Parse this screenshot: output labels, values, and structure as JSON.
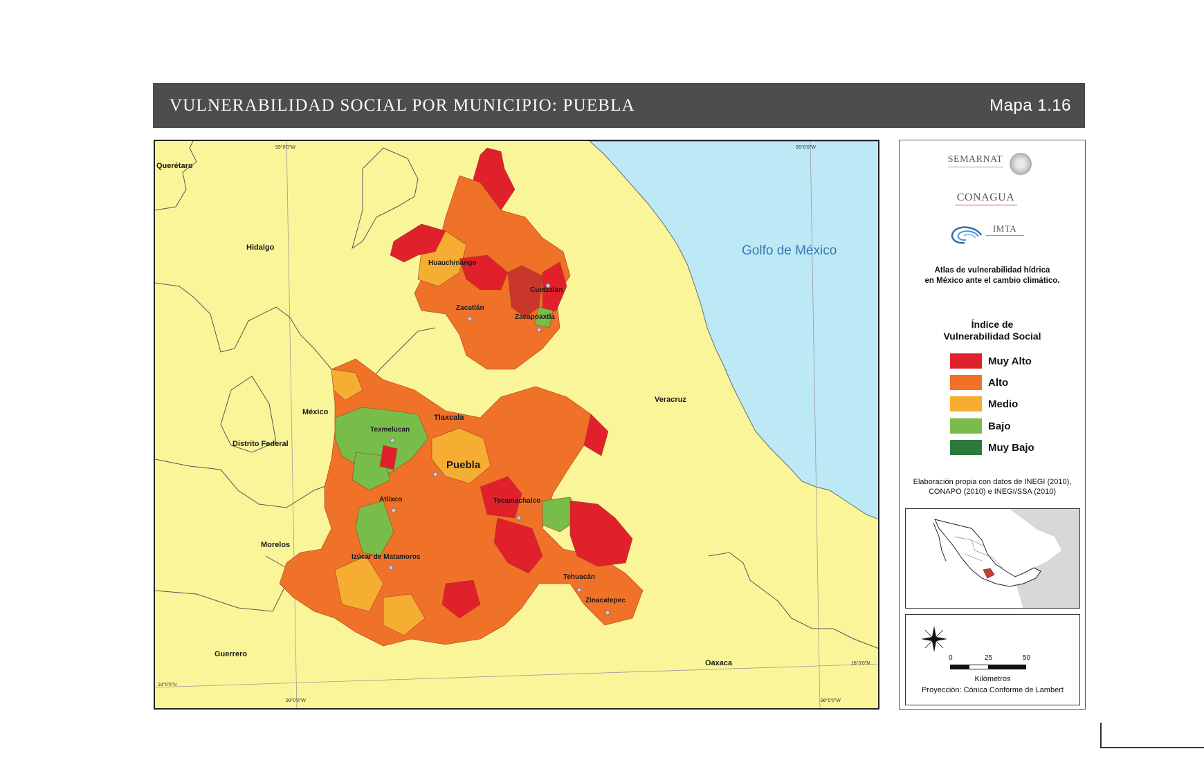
{
  "header": {
    "title": "VULNERABILIDAD SOCIAL POR MUNICIPIO: PUEBLA",
    "map_number": "Mapa 1.16"
  },
  "map": {
    "sea_label": "Golfo de México",
    "coords": {
      "top_left": "99°0'0\"W",
      "top_right": "96°0'0\"W",
      "bottom_left": "99°0'0\"W",
      "bottom_right": "96°0'0\"W",
      "left": "18°0'0\"N",
      "right": "18°0'0\"N"
    },
    "states": [
      "Querétaro",
      "Hidalgo",
      "México",
      "Distrito Federal",
      "Tlaxcala",
      "Veracruz",
      "Morelos",
      "Guerrero",
      "Oaxaca"
    ],
    "cities": [
      "Huauchinango",
      "Cuetzalan",
      "Zacatlán",
      "Zacapoaxtla",
      "Texmelucan",
      "Puebla",
      "Atlixco",
      "Tecamachalco",
      "Izúcar de Matamoros",
      "Tehuacán",
      "Zinacatepec"
    ],
    "colors": {
      "land": "#fbf59a",
      "sea": "#bde8f6",
      "muy_alto": "#e0202a",
      "alto": "#ef7228",
      "medio": "#f5ae32",
      "bajo": "#78bc4a",
      "muy_bajo": "#2b7a3a"
    }
  },
  "legend": {
    "logos": {
      "semarnat": "SEMARNAT",
      "conagua": "CONAGUA",
      "imta": "IMTA"
    },
    "atlas_line1": "Atlas de vulnerabilidad  hídrica",
    "atlas_line2": "en México ante el cambio climático.",
    "title_line1": "Índice de",
    "title_line2": "Vulnerabilidad Social",
    "items": [
      {
        "label": "Muy Alto",
        "color": "#e0202a"
      },
      {
        "label": "Alto",
        "color": "#ef7228"
      },
      {
        "label": "Medio",
        "color": "#f5ae32"
      },
      {
        "label": "Bajo",
        "color": "#78bc4a"
      },
      {
        "label": "Muy Bajo",
        "color": "#2b7a3a"
      }
    ],
    "credit_line1": "Elaboración propia con datos de INEGI (2010),",
    "credit_line2": "CONAPO (2010) e INEGI/SSA (2010)",
    "scale": {
      "ticks": [
        "0",
        "25",
        "50"
      ],
      "unit": "Kilómetros",
      "projection": "Proyección: Cónica Conforme de Lambert"
    }
  }
}
